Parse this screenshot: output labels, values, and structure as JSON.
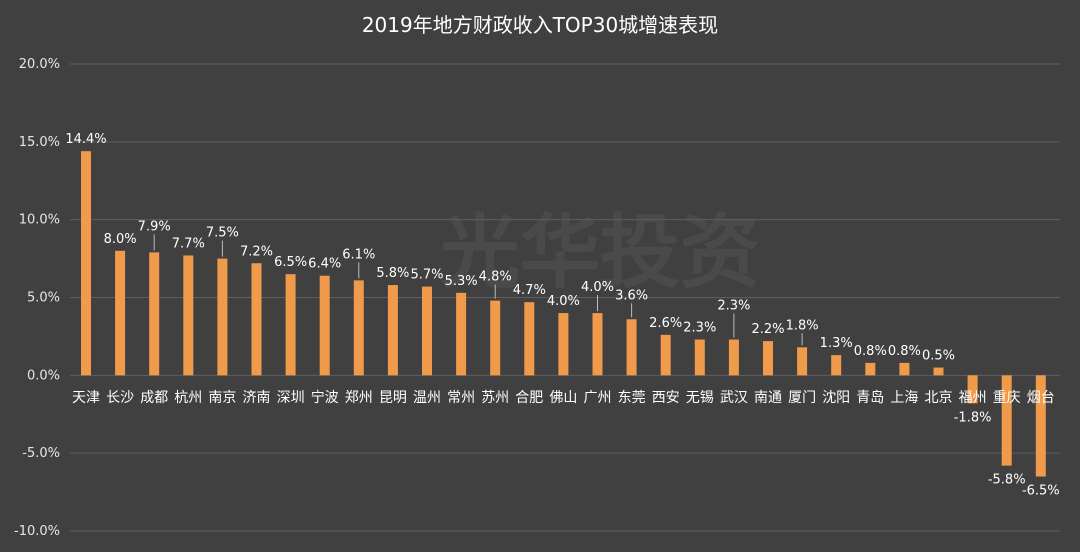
{
  "chart_data": {
    "type": "bar",
    "title": "2019年地方财政收入TOP30城增速表现",
    "xlabel": "",
    "ylabel": "",
    "ylim": [
      -10,
      20
    ],
    "yticks": [
      -10,
      -5,
      0,
      5,
      10,
      15,
      20
    ],
    "ytick_labels": [
      "-10.0%",
      "-5.0%",
      "0.0%",
      "5.0%",
      "10.0%",
      "15.0%",
      "20.0%"
    ],
    "grid": true,
    "bar_color": "#F09A4B",
    "background": "#404040",
    "categories": [
      "天津",
      "长沙",
      "成都",
      "杭州",
      "南京",
      "济南",
      "深圳",
      "宁波",
      "郑州",
      "昆明",
      "温州",
      "常州",
      "苏州",
      "合肥",
      "佛山",
      "广州",
      "东莞",
      "西安",
      "无锡",
      "武汉",
      "南通",
      "厦门",
      "沈阳",
      "青岛",
      "上海",
      "北京",
      "福州",
      "重庆",
      "烟台"
    ],
    "values": [
      14.4,
      8.0,
      7.9,
      7.7,
      7.5,
      7.2,
      6.5,
      6.4,
      6.1,
      5.8,
      5.7,
      5.3,
      4.8,
      4.7,
      4.0,
      4.0,
      3.6,
      2.6,
      2.3,
      2.3,
      2.2,
      1.8,
      1.3,
      0.8,
      0.8,
      0.5,
      -1.8,
      -5.8,
      -6.5
    ],
    "data_labels": [
      "14.4%",
      "8.0%",
      "7.9%",
      "7.7%",
      "7.5%",
      "7.2%",
      "6.5%",
      "6.4%",
      "6.1%",
      "5.8%",
      "5.7%",
      "5.3%",
      "4.8%",
      "4.7%",
      "4.0%",
      "4.0%",
      "3.6%",
      "2.6%",
      "2.3%",
      "2.3%",
      "2.2%",
      "1.8%",
      "1.3%",
      "0.8%",
      "0.8%",
      "0.5%",
      "-1.8%",
      "-5.8%",
      "-6.5%"
    ]
  },
  "watermark": "光华投资"
}
